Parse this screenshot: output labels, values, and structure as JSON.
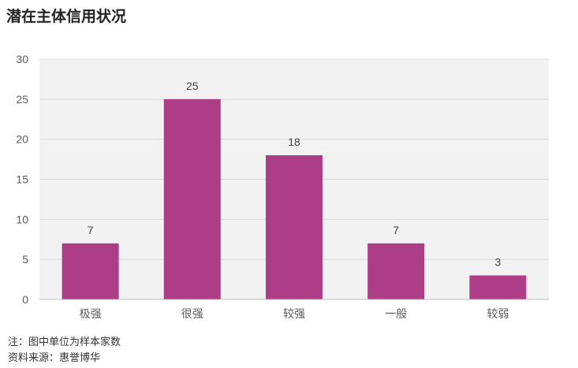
{
  "chart_data": {
    "type": "bar",
    "title": "潜在主体信用状况",
    "categories": [
      "极强",
      "很强",
      "较强",
      "一般",
      "较弱"
    ],
    "values": [
      7,
      25,
      18,
      7,
      3
    ],
    "ylim": [
      0,
      30
    ],
    "yticks": [
      0,
      5,
      10,
      15,
      20,
      25,
      30
    ],
    "grid": true,
    "bar_color": "#ad3d86",
    "plot_bg": "#f2f2f2",
    "data_labels": true
  },
  "footnotes": {
    "note": "注：图中单位为样本家数",
    "source": "资料来源：惠誉博华"
  }
}
